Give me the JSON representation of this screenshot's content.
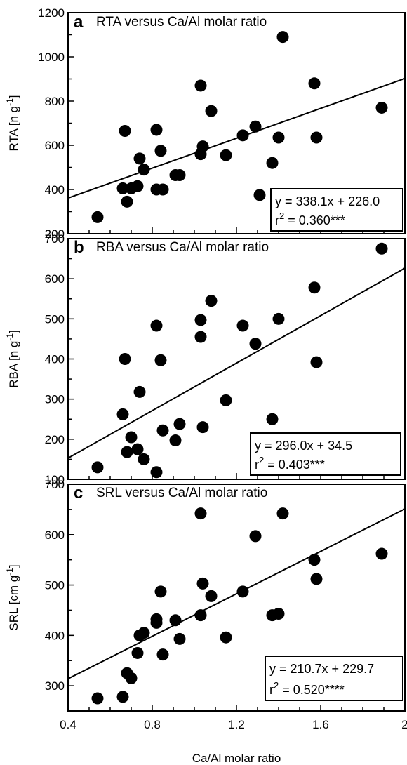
{
  "chart_data": [
    {
      "type": "scatter",
      "letter": "a",
      "title": "RTA versus Ca/Al molar ratio",
      "xlabel": "",
      "ylabel": "RTA [n g",
      "ylabel_sup": "-1",
      "ylabel_end": "]",
      "xlim": [
        0.4,
        2.0
      ],
      "ylim": [
        200,
        1200
      ],
      "yticks": [
        200,
        400,
        600,
        800,
        1000,
        1200
      ],
      "regression": {
        "slope": 338.1,
        "intercept": 226.0
      },
      "equation": "y = 338.1x + 226.0",
      "r2_prefix": "r",
      "r2_sup": "2",
      "r2_value": " = 0.360***",
      "points": [
        [
          0.54,
          275
        ],
        [
          0.66,
          405
        ],
        [
          0.67,
          665
        ],
        [
          0.68,
          345
        ],
        [
          0.7,
          405
        ],
        [
          0.73,
          415
        ],
        [
          0.74,
          540
        ],
        [
          0.76,
          490
        ],
        [
          0.82,
          400
        ],
        [
          0.82,
          670
        ],
        [
          0.84,
          575
        ],
        [
          0.85,
          400
        ],
        [
          0.91,
          465
        ],
        [
          0.93,
          465
        ],
        [
          1.03,
          870
        ],
        [
          1.03,
          560
        ],
        [
          1.04,
          595
        ],
        [
          1.08,
          755
        ],
        [
          1.15,
          555
        ],
        [
          1.23,
          645
        ],
        [
          1.29,
          685
        ],
        [
          1.31,
          375
        ],
        [
          1.37,
          520
        ],
        [
          1.4,
          635
        ],
        [
          1.42,
          1090
        ],
        [
          1.57,
          880
        ],
        [
          1.58,
          635
        ],
        [
          1.89,
          770
        ]
      ]
    },
    {
      "type": "scatter",
      "letter": "b",
      "title": "RBA versus Ca/Al molar ratio",
      "xlabel": "",
      "ylabel": "RBA [n g",
      "ylabel_sup": "-1",
      "ylabel_end": "]",
      "xlim": [
        0.4,
        2.0
      ],
      "ylim": [
        100,
        700
      ],
      "yticks": [
        100,
        200,
        300,
        400,
        500,
        600,
        700
      ],
      "regression": {
        "slope": 296.0,
        "intercept": 34.5
      },
      "equation": "y = 296.0x + 34.5",
      "r2_prefix": "r",
      "r2_sup": "2",
      "r2_value": " = 0.403***",
      "points": [
        [
          0.54,
          130
        ],
        [
          0.66,
          262
        ],
        [
          0.67,
          400
        ],
        [
          0.68,
          168
        ],
        [
          0.7,
          205
        ],
        [
          0.73,
          175
        ],
        [
          0.74,
          318
        ],
        [
          0.76,
          150
        ],
        [
          0.82,
          118
        ],
        [
          0.82,
          483
        ],
        [
          0.84,
          397
        ],
        [
          0.85,
          222
        ],
        [
          0.91,
          197
        ],
        [
          0.93,
          238
        ],
        [
          1.03,
          497
        ],
        [
          1.03,
          455
        ],
        [
          1.04,
          230
        ],
        [
          1.08,
          545
        ],
        [
          1.15,
          297
        ],
        [
          1.23,
          483
        ],
        [
          1.29,
          438
        ],
        [
          1.31,
          197
        ],
        [
          1.37,
          250
        ],
        [
          1.4,
          500
        ],
        [
          1.57,
          578
        ],
        [
          1.58,
          392
        ],
        [
          1.89,
          675
        ]
      ]
    },
    {
      "type": "scatter",
      "letter": "c",
      "title": "SRL versus Ca/Al molar ratio",
      "xlabel": "Ca/Al molar ratio",
      "ylabel": "SRL [cm g",
      "ylabel_sup": "-1",
      "ylabel_end": "]",
      "xlim": [
        0.4,
        2.0
      ],
      "ylim": [
        250,
        700
      ],
      "yticks": [
        300,
        400,
        500,
        600,
        700
      ],
      "xticks": [
        0.4,
        0.8,
        1.2,
        1.6,
        2.0
      ],
      "xtick_labels": [
        "0.4",
        "0.8",
        "1.2",
        "1.6",
        "2"
      ],
      "regression": {
        "slope": 210.7,
        "intercept": 229.7
      },
      "equation": "y = 210.7x + 229.7",
      "r2_prefix": "r",
      "r2_sup": "2",
      "r2_value": " = 0.520****",
      "points": [
        [
          0.54,
          275
        ],
        [
          0.66,
          278
        ],
        [
          0.68,
          325
        ],
        [
          0.7,
          315
        ],
        [
          0.73,
          365
        ],
        [
          0.74,
          400
        ],
        [
          0.76,
          405
        ],
        [
          0.82,
          425
        ],
        [
          0.82,
          432
        ],
        [
          0.84,
          487
        ],
        [
          0.85,
          362
        ],
        [
          0.91,
          430
        ],
        [
          0.93,
          393
        ],
        [
          1.03,
          642
        ],
        [
          1.03,
          440
        ],
        [
          1.04,
          503
        ],
        [
          1.08,
          478
        ],
        [
          1.15,
          396
        ],
        [
          1.23,
          487
        ],
        [
          1.29,
          597
        ],
        [
          1.37,
          440
        ],
        [
          1.4,
          443
        ],
        [
          1.42,
          642
        ],
        [
          1.57,
          550
        ],
        [
          1.58,
          512
        ],
        [
          1.89,
          562
        ]
      ]
    }
  ]
}
